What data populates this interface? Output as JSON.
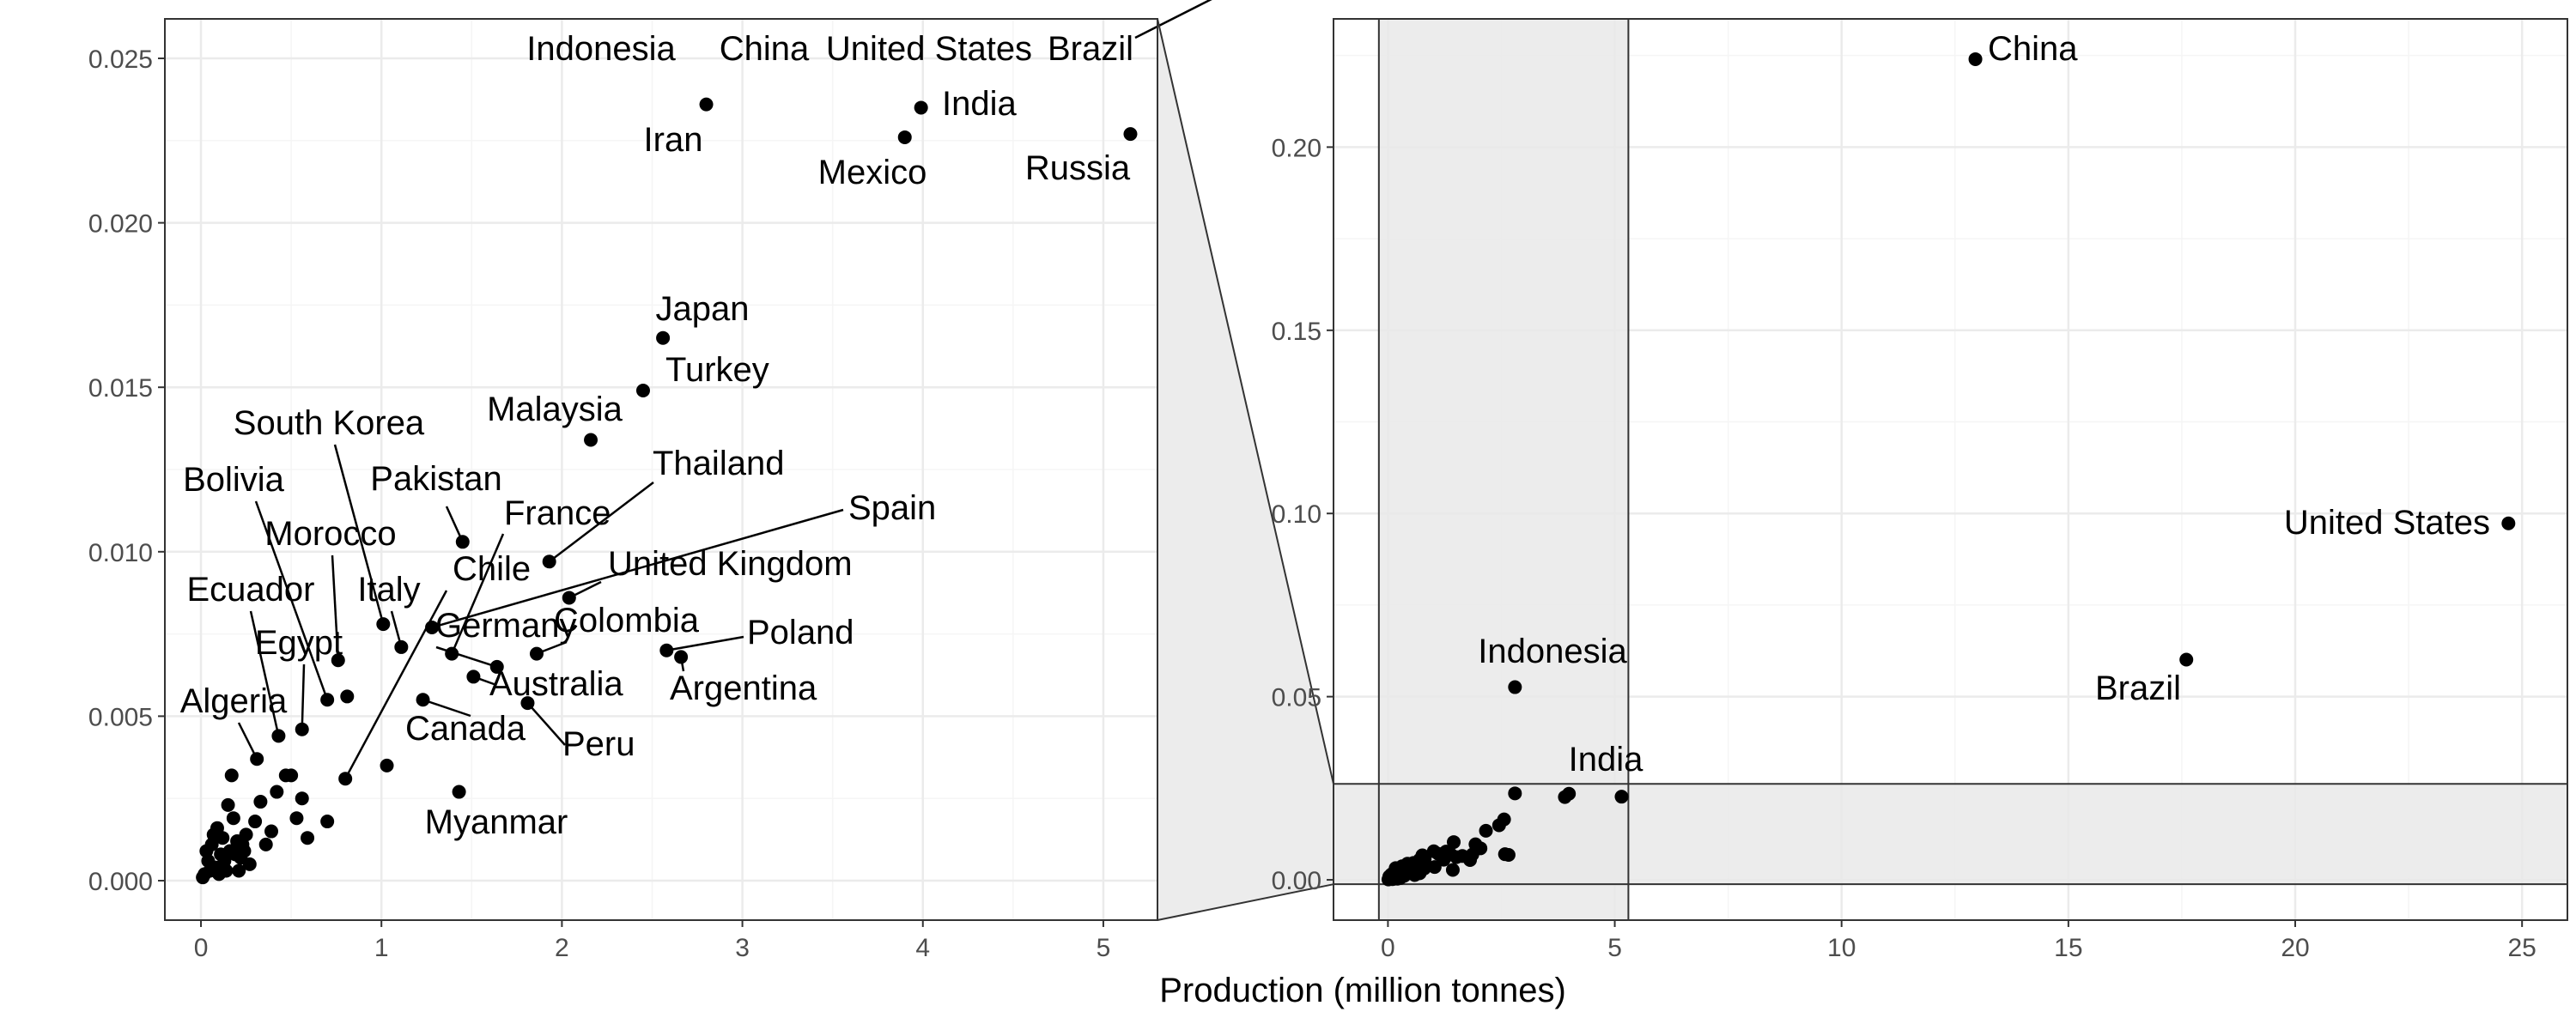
{
  "chart_data": {
    "type": "scatter",
    "xlabel": "Production (million tonnes)",
    "ylabel": "",
    "grid": true,
    "legend": "none",
    "colors": {
      "point": "#000000",
      "grid_major": "#ebebeb",
      "grid_minor": "#f5f5f5",
      "zoom_shade": "#e9e9e9",
      "panel_border": "#333333",
      "tick_label": "#4d4d4d"
    },
    "main_view": {
      "xlim": [
        -0.2,
        5.3
      ],
      "ylim": [
        -0.0012,
        0.0262
      ],
      "x_ticks": [
        "0",
        "1",
        "2",
        "3",
        "4",
        "5"
      ],
      "y_ticks": [
        "0.000",
        "0.005",
        "0.010",
        "0.015",
        "0.020",
        "0.025"
      ],
      "x_tick_values": [
        0,
        1,
        2,
        3,
        4,
        5
      ],
      "y_tick_values": [
        0,
        0.005,
        0.01,
        0.015,
        0.02,
        0.025
      ]
    },
    "overview": {
      "xlim": [
        -1.2,
        26.0
      ],
      "ylim": [
        -0.011,
        0.235
      ],
      "x_ticks": [
        "0",
        "5",
        "10",
        "15",
        "20",
        "25"
      ],
      "y_ticks": [
        "0.00",
        "0.05",
        "0.10",
        "0.15",
        "0.20"
      ],
      "x_tick_values": [
        0,
        5,
        10,
        15,
        20,
        25
      ],
      "y_tick_values": [
        0,
        0.05,
        0.1,
        0.15,
        0.2
      ],
      "zoom_region": {
        "x": [
          -0.2,
          5.3
        ],
        "y": [
          -0.0012,
          0.0262
        ]
      }
    },
    "points": [
      {
        "label": "China",
        "x": 12.95,
        "y": 0.224
      },
      {
        "label": "United States",
        "x": 24.7,
        "y": 0.0973
      },
      {
        "label": "Brazil",
        "x": 17.6,
        "y": 0.0601
      },
      {
        "label": "Indonesia",
        "x": 2.8,
        "y": 0.0526
      },
      {
        "label": "India",
        "x": 3.99,
        "y": 0.0235
      },
      {
        "label": "Iran",
        "x": 2.8,
        "y": 0.0236
      },
      {
        "label": "Mexico",
        "x": 3.9,
        "y": 0.0226
      },
      {
        "label": "Russia",
        "x": 5.15,
        "y": 0.0227
      },
      {
        "label": "Japan",
        "x": 2.56,
        "y": 0.0165
      },
      {
        "label": "Turkey",
        "x": 2.45,
        "y": 0.0149
      },
      {
        "label": "Malaysia",
        "x": 2.16,
        "y": 0.0134
      },
      {
        "label": "Thailand",
        "x": 1.93,
        "y": 0.0097
      },
      {
        "label": "South Korea",
        "x": 1.01,
        "y": 0.0078
      },
      {
        "label": "Pakistan",
        "x": 1.45,
        "y": 0.0103
      },
      {
        "label": "France",
        "x": 1.39,
        "y": 0.0069
      },
      {
        "label": "Spain",
        "x": 1.28,
        "y": 0.0077
      },
      {
        "label": "United Kingdom",
        "x": 2.04,
        "y": 0.0086
      },
      {
        "label": "Bolivia",
        "x": 0.7,
        "y": 0.0055
      },
      {
        "label": "Morocco",
        "x": 0.76,
        "y": 0.0067
      },
      {
        "label": "Chile",
        "x": 0.8,
        "y": 0.0031
      },
      {
        "label": "Italy",
        "x": 1.11,
        "y": 0.0071
      },
      {
        "label": "Germany",
        "x": 1.64,
        "y": 0.0065
      },
      {
        "label": "Colombia",
        "x": 1.86,
        "y": 0.0069
      },
      {
        "label": "Poland",
        "x": 2.58,
        "y": 0.007
      },
      {
        "label": "Argentina",
        "x": 2.66,
        "y": 0.0068
      },
      {
        "label": "Ecuador",
        "x": 0.43,
        "y": 0.0044
      },
      {
        "label": "Egypt",
        "x": 0.56,
        "y": 0.0046
      },
      {
        "label": "Australia",
        "x": 1.51,
        "y": 0.0062
      },
      {
        "label": "Algeria",
        "x": 0.31,
        "y": 0.0037
      },
      {
        "label": "Canada",
        "x": 1.23,
        "y": 0.0055
      },
      {
        "label": "Peru",
        "x": 1.81,
        "y": 0.0054
      },
      {
        "label": "Myanmar",
        "x": 1.43,
        "y": 0.0027
      },
      {
        "label": "",
        "x": 0.02,
        "y": 0.0002
      },
      {
        "label": "",
        "x": 0.04,
        "y": 0.0006
      },
      {
        "label": "",
        "x": 0.06,
        "y": 0.0011
      },
      {
        "label": "",
        "x": 0.08,
        "y": 0.0004
      },
      {
        "label": "",
        "x": 0.09,
        "y": 0.0016
      },
      {
        "label": "",
        "x": 0.11,
        "y": 0.0008
      },
      {
        "label": "",
        "x": 0.12,
        "y": 0.0013
      },
      {
        "label": "",
        "x": 0.14,
        "y": 0.0003
      },
      {
        "label": "",
        "x": 0.16,
        "y": 0.0009
      },
      {
        "label": "",
        "x": 0.18,
        "y": 0.0019
      },
      {
        "label": "",
        "x": 0.15,
        "y": 0.0023
      },
      {
        "label": "",
        "x": 0.17,
        "y": 0.0032
      },
      {
        "label": "",
        "x": 0.2,
        "y": 0.0012
      },
      {
        "label": "",
        "x": 0.22,
        "y": 0.0007
      },
      {
        "label": "",
        "x": 0.25,
        "y": 0.0014
      },
      {
        "label": "",
        "x": 0.27,
        "y": 0.0005
      },
      {
        "label": "",
        "x": 0.3,
        "y": 0.0018
      },
      {
        "label": "",
        "x": 0.33,
        "y": 0.0024
      },
      {
        "label": "",
        "x": 0.36,
        "y": 0.0011
      },
      {
        "label": "",
        "x": 0.39,
        "y": 0.0015
      },
      {
        "label": "",
        "x": 0.42,
        "y": 0.0027
      },
      {
        "label": "",
        "x": 0.47,
        "y": 0.0032
      },
      {
        "label": "",
        "x": 0.5,
        "y": 0.0032
      },
      {
        "label": "",
        "x": 0.53,
        "y": 0.0019
      },
      {
        "label": "",
        "x": 0.56,
        "y": 0.0025
      },
      {
        "label": "",
        "x": 0.59,
        "y": 0.0013
      },
      {
        "label": "",
        "x": 0.7,
        "y": 0.0018
      },
      {
        "label": "",
        "x": 0.81,
        "y": 0.0056
      },
      {
        "label": "",
        "x": 1.03,
        "y": 0.0035
      },
      {
        "label": "",
        "x": 0.03,
        "y": 0.0009
      },
      {
        "label": "",
        "x": 0.05,
        "y": 0.0003
      },
      {
        "label": "",
        "x": 0.07,
        "y": 0.0014
      },
      {
        "label": "",
        "x": 0.13,
        "y": 0.0006
      },
      {
        "label": "",
        "x": 0.21,
        "y": 0.0003
      },
      {
        "label": "",
        "x": 0.23,
        "y": 0.0011
      },
      {
        "label": "",
        "x": 0.01,
        "y": 0.0001
      },
      {
        "label": "",
        "x": 0.1,
        "y": 0.0002
      },
      {
        "label": "",
        "x": 0.19,
        "y": 0.0008
      },
      {
        "label": "",
        "x": 0.24,
        "y": 0.0009
      }
    ]
  }
}
